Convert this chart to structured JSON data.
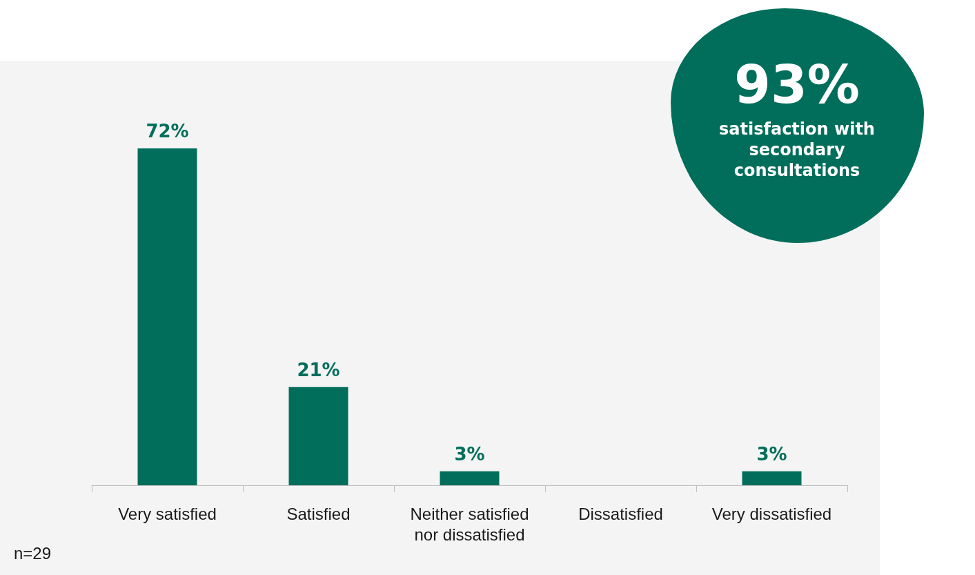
{
  "chart_data": {
    "type": "bar",
    "categories": [
      "Very satisfied",
      "Satisfied",
      "Neither satisfied\nnor dissatisfied",
      "Dissatisfied",
      "Very dissatisfied"
    ],
    "values": [
      72,
      21,
      3,
      0,
      3
    ],
    "value_labels": [
      "72%",
      "21%",
      "3%",
      null,
      "3%"
    ],
    "color": "#006e5a",
    "annotations": [
      "93%",
      "satisfaction with secondary consultations",
      "n=29"
    ]
  }
}
